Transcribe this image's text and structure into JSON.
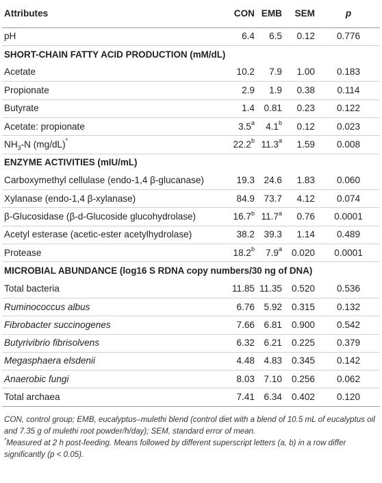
{
  "header": {
    "attributes": "Attributes",
    "con": "CON",
    "emb": "EMB",
    "sem": "SEM",
    "p": "p"
  },
  "rows": [
    {
      "label": "pH",
      "con": "6.4",
      "emb": "6.5",
      "sem": "0.12",
      "p": "0.776"
    },
    {
      "section": "SHORT-CHAIN FATTY ACID PRODUCTION (mM/dL)"
    },
    {
      "label": "Acetate",
      "con": "10.2",
      "emb": "7.9",
      "sem": "1.00",
      "p": "0.183"
    },
    {
      "label": "Propionate",
      "con": "2.9",
      "emb": "1.9",
      "sem": "0.38",
      "p": "0.114"
    },
    {
      "label": "Butyrate",
      "con": "1.4",
      "emb": "0.81",
      "sem": "0.23",
      "p": "0.122"
    },
    {
      "label": "Acetate: propionate",
      "con": "3.5",
      "con_sup": "a",
      "emb": "4.1",
      "emb_sup": "b",
      "sem": "0.12",
      "p": "0.023"
    },
    {
      "label_main": "NH",
      "label_sub": "3",
      "label_rest": "-N (mg/dL)",
      "label_sup": "*",
      "con": "22.2",
      "con_sup": "b",
      "emb": "11.3",
      "emb_sup": "a",
      "sem": "1.59",
      "p": "0.008"
    },
    {
      "section": "ENZYME ACTIVITIES (mIU/mL)"
    },
    {
      "label": "Carboxymethyl cellulase (endo-1,4 β-glucanase)",
      "con": "19.3",
      "emb": "24.6",
      "sem": "1.83",
      "p": "0.060"
    },
    {
      "label": "Xylanase (endo-1,4 β-xylanase)",
      "con": "84.9",
      "emb": "73.7",
      "sem": "4.12",
      "p": "0.074"
    },
    {
      "label": "β-Glucosidase (β-d-Glucoside glucohydrolase)",
      "con": "16.7",
      "con_sup": "b",
      "emb": "11.7",
      "emb_sup": "a",
      "sem": "0.76",
      "p": "0.0001"
    },
    {
      "label": "Acetyl esterase (acetic-ester acetylhydrolase)",
      "con": "38.2",
      "emb": "39.3",
      "sem": "1.14",
      "p": "0.489"
    },
    {
      "label": "Protease",
      "con": "18.2",
      "con_sup": "b",
      "emb": "7.9",
      "emb_sup": "a",
      "sem": "0.020",
      "p": "0.0001"
    },
    {
      "section": "MICROBIAL ABUNDANCE (log16 S RDNA copy numbers/30 ng of DNA)"
    },
    {
      "label": "Total bacteria",
      "con": "11.85",
      "emb": "11.35",
      "sem": "0.520",
      "p": "0.536"
    },
    {
      "label": "Ruminococcus albus",
      "italic": true,
      "con": "6.76",
      "emb": "5.92",
      "sem": "0.315",
      "p": "0.132"
    },
    {
      "label": "Fibrobacter succinogenes",
      "italic": true,
      "con": "7.66",
      "emb": "6.81",
      "sem": "0.900",
      "p": "0.542"
    },
    {
      "label": "Butyrivibrio fibrisolvens",
      "italic": true,
      "con": "6.32",
      "emb": "6.21",
      "sem": "0.225",
      "p": "0.379"
    },
    {
      "label": "Megasphaera elsdenii",
      "italic": true,
      "con": "4.48",
      "emb": "4.83",
      "sem": "0.345",
      "p": "0.142"
    },
    {
      "label": "Anaerobic fungi",
      "italic": true,
      "con": "8.03",
      "emb": "7.10",
      "sem": "0.256",
      "p": "0.062"
    },
    {
      "label": "Total archaea",
      "con": "7.41",
      "emb": "6.34",
      "sem": "0.402",
      "p": "0.120"
    }
  ],
  "footnote": {
    "line1": "CON, control group; EMB, eucalyptus–mulethi blend (control diet with a blend of 10.5 mL of eucalyptus oil and 7.35 g of mulethi root powder/h/day); SEM, standard error of mean.",
    "asterisk": "*",
    "line2": "Measured at 2 h post-feeding. Means followed by different superscript letters (a, b) in a row differ significantly (p < 0.05)."
  }
}
